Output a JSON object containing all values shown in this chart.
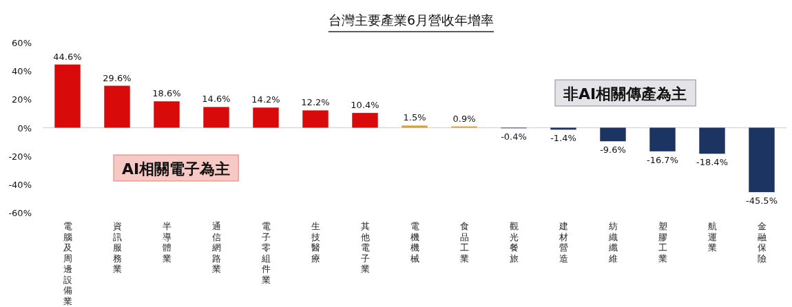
{
  "chart_data": {
    "type": "bar",
    "title": "台灣主要產業6月營收年增率",
    "categories": [
      "電腦及周邊設備業",
      "資訊服務業",
      "半導體業",
      "通信網路業",
      "電子零組件業",
      "生技醫療",
      "其他電子業",
      "電機機械",
      "食品工業",
      "觀光餐旅",
      "建材營造",
      "紡織纖維",
      "塑膠工業",
      "航運業",
      "金融保險"
    ],
    "values": [
      44.6,
      29.6,
      18.6,
      14.6,
      14.2,
      12.2,
      10.4,
      1.5,
      0.9,
      -0.4,
      -1.4,
      -9.6,
      -16.7,
      -18.4,
      -45.5
    ],
    "value_labels": [
      "44.6%",
      "29.6%",
      "18.6%",
      "14.6%",
      "14.2%",
      "12.2%",
      "10.4%",
      "1.5%",
      "0.9%",
      "-0.4%",
      "-1.4%",
      "-9.6%",
      "-16.7%",
      "-18.4%",
      "-45.5%"
    ],
    "colors": [
      "#d90a0a",
      "#d90a0a",
      "#d90a0a",
      "#d90a0a",
      "#d90a0a",
      "#d90a0a",
      "#d90a0a",
      "#d8a030",
      "#d8a030",
      "#1c3462",
      "#1c3462",
      "#1c3462",
      "#1c3462",
      "#1c3462",
      "#1c3462"
    ],
    "ylim": [
      -60,
      60
    ],
    "yticks": [
      {
        "value": -60,
        "label": "-60%"
      },
      {
        "value": -40,
        "label": "-40%"
      },
      {
        "value": -20,
        "label": "-20%"
      },
      {
        "value": 0,
        "label": "0%"
      },
      {
        "value": 20,
        "label": "20%"
      },
      {
        "value": 40,
        "label": "40%"
      },
      {
        "value": 60,
        "label": "60%"
      }
    ],
    "annotations": [
      "AI相關電子為主",
      "非AI相關傳產為主"
    ]
  }
}
